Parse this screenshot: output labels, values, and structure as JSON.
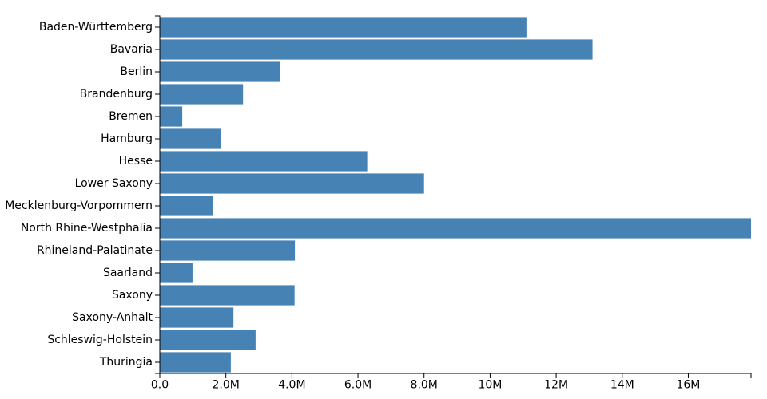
{
  "chart_data": {
    "type": "bar",
    "orientation": "horizontal",
    "title": "",
    "xlabel": "",
    "ylabel": "",
    "categories": [
      "Baden-Württemberg",
      "Bavaria",
      "Berlin",
      "Brandenburg",
      "Bremen",
      "Hamburg",
      "Hesse",
      "Lower Saxony",
      "Mecklenburg-Vorpommern",
      "North Rhine-Westphalia",
      "Rhineland-Palatinate",
      "Saarland",
      "Saxony",
      "Saxony-Anhalt",
      "Schleswig-Holstein",
      "Thuringia"
    ],
    "values": [
      11100000,
      13100000,
      3650000,
      2520000,
      680000,
      1850000,
      6280000,
      8000000,
      1620000,
      17900000,
      4090000,
      990000,
      4080000,
      2230000,
      2900000,
      2150000
    ],
    "xlim": [
      0,
      17900000
    ],
    "x_ticks": [
      0,
      2000000,
      4000000,
      6000000,
      8000000,
      10000000,
      12000000,
      14000000,
      16000000
    ],
    "x_tick_labels": [
      "0.0",
      "2.0M",
      "4.0M",
      "6.0M",
      "8.0M",
      "10M",
      "12M",
      "14M",
      "16M"
    ],
    "bar_color": "#4682b4",
    "grid": false,
    "legend": "none"
  }
}
